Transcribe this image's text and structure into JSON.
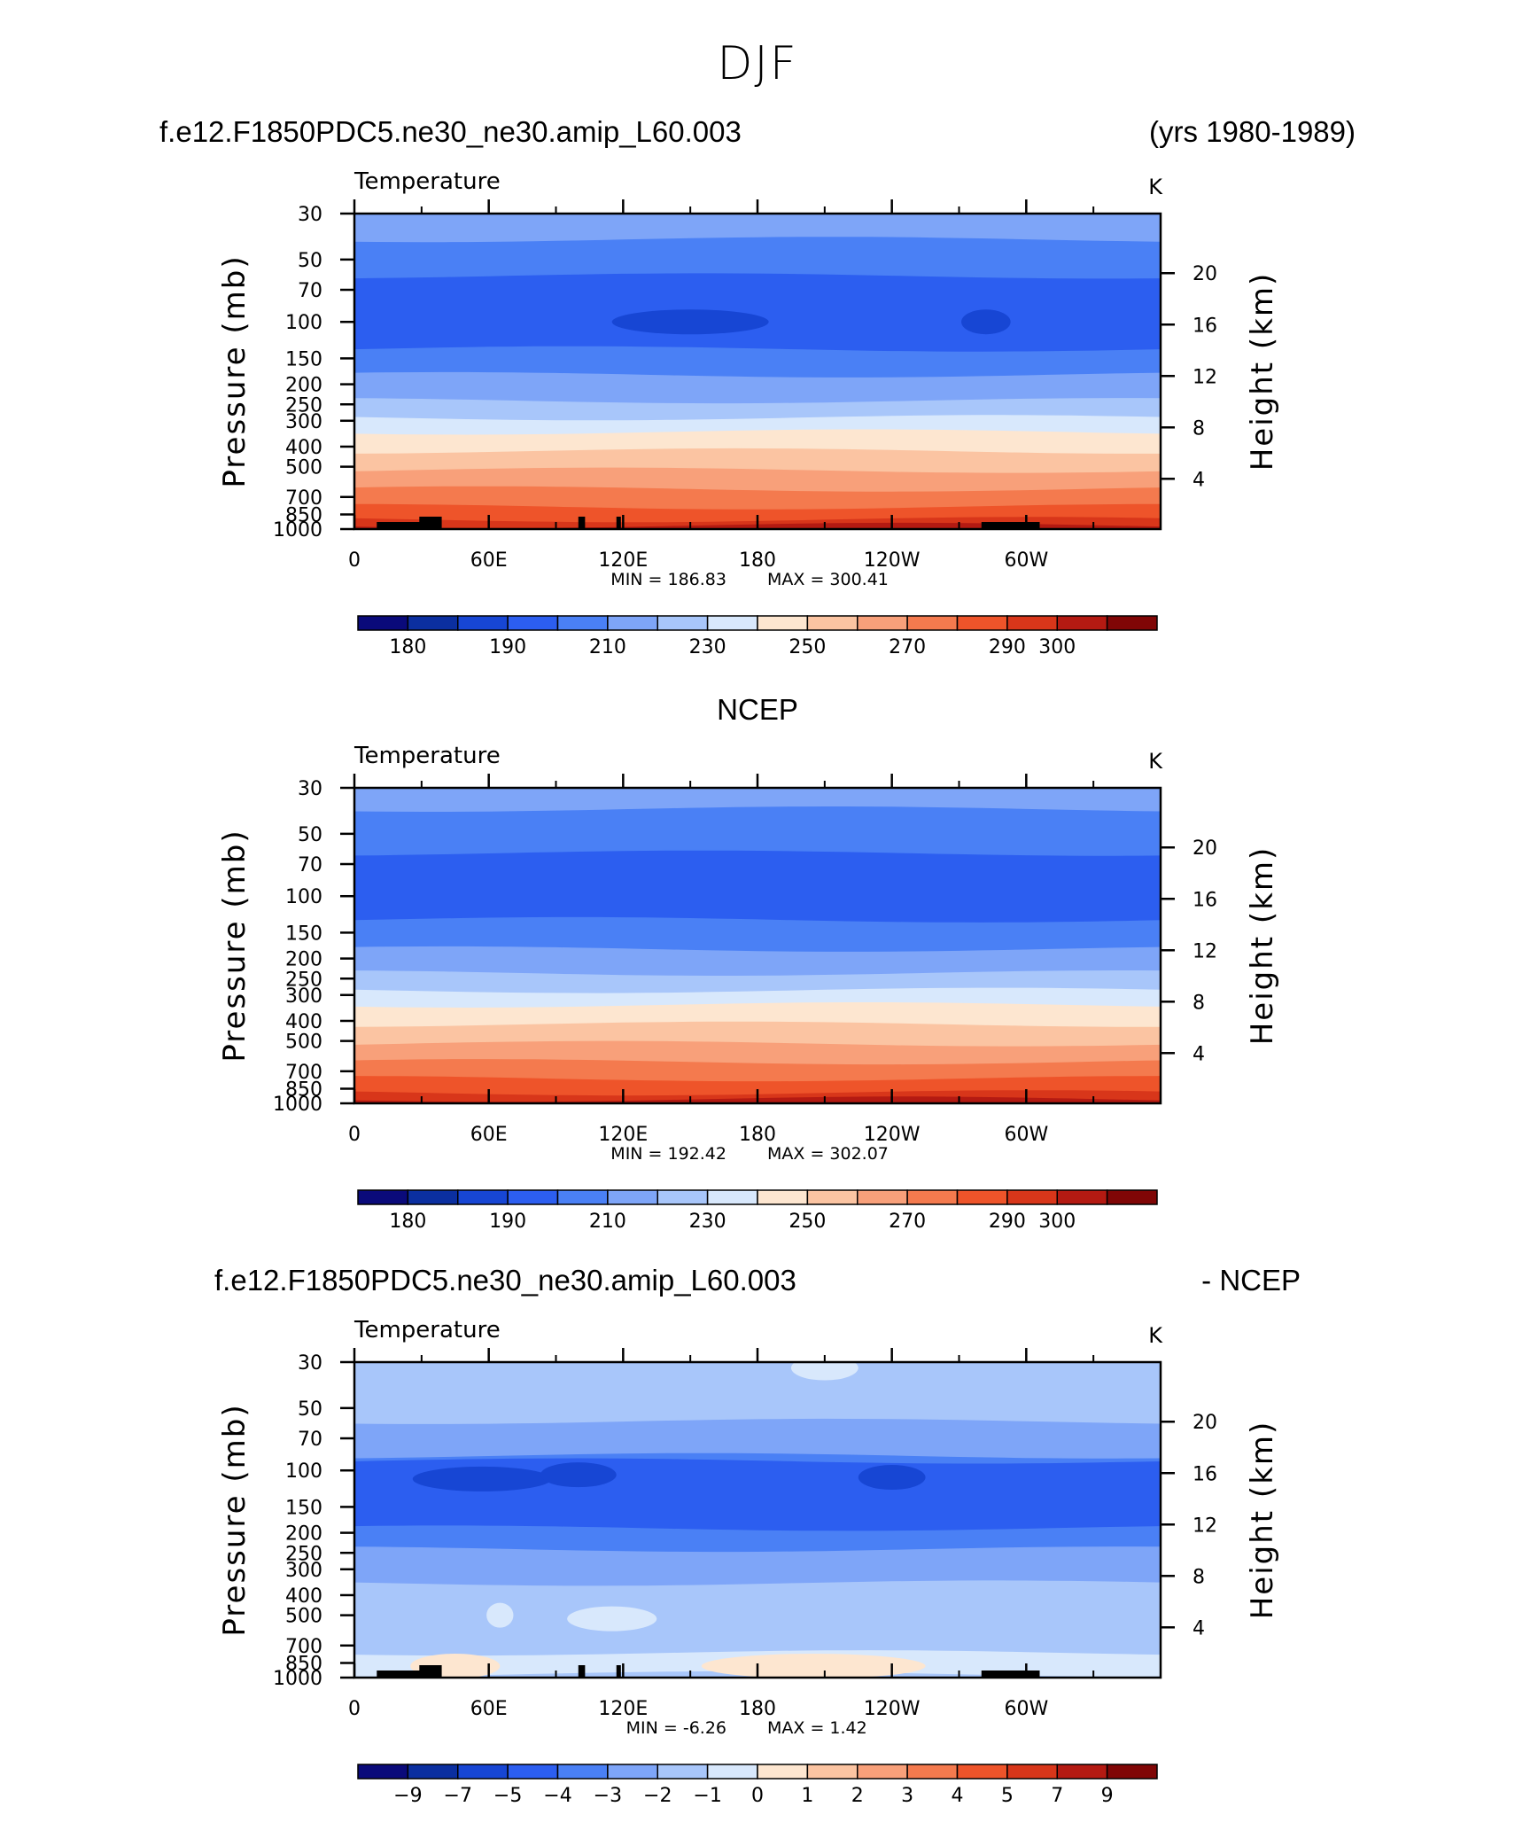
{
  "figure": {
    "title": "DJF",
    "panel1": {
      "left_title": "f.e12.F1850PDC5.ne30_ne30.amip_L60.003",
      "right_title": "(yrs 1980-1989)"
    },
    "panel2": {
      "center_title": "NCEP"
    },
    "panel3": {
      "left_title": "f.e12.F1850PDC5.ne30_ne30.amip_L60.003",
      "right_title": "- NCEP"
    }
  },
  "chart_data": [
    {
      "type": "heatmap",
      "title": "Temperature",
      "units": "K",
      "ylabel": "Pressure (mb)",
      "ylabel_right": "Height (km)",
      "x_ticks": [
        "0",
        "60E",
        "120E",
        "180",
        "120W",
        "60W"
      ],
      "y_ticks": [
        "30",
        "50",
        "70",
        "100",
        "150",
        "200",
        "250",
        "300",
        "400",
        "500",
        "700",
        "850",
        "1000"
      ],
      "y2_ticks": [
        "20",
        "16",
        "12",
        "8",
        "4"
      ],
      "min_label": "MIN =  186.83",
      "max_label": "MAX =  300.41",
      "min": 186.83,
      "max": 300.41,
      "colorbar_labels": [
        "180",
        "190",
        "210",
        "230",
        "250",
        "270",
        "290",
        "300"
      ],
      "colorbar_colors": [
        "#0a0a7a",
        "#0b2fa0",
        "#1746d4",
        "#2c5ef0",
        "#4a80f5",
        "#7ea5f8",
        "#a8c6fa",
        "#d8e8fc",
        "#fde6d0",
        "#fbc4a2",
        "#f8a07a",
        "#f47a4e",
        "#ee542a",
        "#d8361a",
        "#b41a12",
        "#800606"
      ],
      "profile": [
        {
          "p": 30,
          "class": 5
        },
        {
          "p": 40,
          "class": 4
        },
        {
          "p": 60,
          "class": 3
        },
        {
          "p": 135,
          "class": 4
        },
        {
          "p": 180,
          "class": 5
        },
        {
          "p": 240,
          "class": 6
        },
        {
          "p": 290,
          "class": 7
        },
        {
          "p": 340,
          "class": 8
        },
        {
          "p": 420,
          "class": 9
        },
        {
          "p": 520,
          "class": 10
        },
        {
          "p": 640,
          "class": 11
        },
        {
          "p": 780,
          "class": 12
        },
        {
          "p": 900,
          "class": 13
        },
        {
          "p": 960,
          "class": 14
        }
      ],
      "features": [
        {
          "lon": 150,
          "p": 100,
          "class": 2,
          "width_lon": 70
        },
        {
          "lon": 282,
          "p": 100,
          "class": 2,
          "width_lon": 22
        }
      ],
      "topography": [
        [
          10,
          30
        ],
        [
          29,
          39
        ],
        [
          100,
          103
        ],
        [
          117,
          119
        ],
        [
          280,
          306
        ]
      ]
    },
    {
      "type": "heatmap",
      "title": "Temperature",
      "units": "K",
      "ylabel": "Pressure (mb)",
      "ylabel_right": "Height (km)",
      "x_ticks": [
        "0",
        "60E",
        "120E",
        "180",
        "120W",
        "60W"
      ],
      "y_ticks": [
        "30",
        "50",
        "70",
        "100",
        "150",
        "200",
        "250",
        "300",
        "400",
        "500",
        "700",
        "850",
        "1000"
      ],
      "y2_ticks": [
        "20",
        "16",
        "12",
        "8",
        "4"
      ],
      "min_label": "MIN =  192.42",
      "max_label": "MAX =  302.07",
      "min": 192.42,
      "max": 302.07,
      "colorbar_labels": [
        "180",
        "190",
        "210",
        "230",
        "250",
        "270",
        "290",
        "300"
      ],
      "colorbar_colors": [
        "#0a0a7a",
        "#0b2fa0",
        "#1746d4",
        "#2c5ef0",
        "#4a80f5",
        "#7ea5f8",
        "#a8c6fa",
        "#d8e8fc",
        "#fde6d0",
        "#fbc4a2",
        "#f8a07a",
        "#f47a4e",
        "#ee542a",
        "#d8361a",
        "#b41a12",
        "#800606"
      ],
      "profile": [
        {
          "p": 30,
          "class": 5
        },
        {
          "p": 38,
          "class": 4
        },
        {
          "p": 62,
          "class": 3
        },
        {
          "p": 130,
          "class": 4
        },
        {
          "p": 180,
          "class": 5
        },
        {
          "p": 235,
          "class": 6
        },
        {
          "p": 285,
          "class": 7
        },
        {
          "p": 335,
          "class": 8
        },
        {
          "p": 415,
          "class": 9
        },
        {
          "p": 515,
          "class": 10
        },
        {
          "p": 630,
          "class": 11
        },
        {
          "p": 760,
          "class": 12
        },
        {
          "p": 890,
          "class": 13
        },
        {
          "p": 955,
          "class": 14
        }
      ],
      "features": [],
      "topography": []
    },
    {
      "type": "heatmap",
      "title": "Temperature",
      "units": "K",
      "ylabel": "Pressure (mb)",
      "ylabel_right": "Height (km)",
      "x_ticks": [
        "0",
        "60E",
        "120E",
        "180",
        "120W",
        "60W"
      ],
      "y_ticks": [
        "30",
        "50",
        "70",
        "100",
        "150",
        "200",
        "250",
        "300",
        "400",
        "500",
        "700",
        "850",
        "1000"
      ],
      "y2_ticks": [
        "20",
        "16",
        "12",
        "8",
        "4"
      ],
      "min_label": "MIN =   -6.26",
      "max_label": "MAX =    1.42",
      "min": -6.26,
      "max": 1.42,
      "colorbar_labels": [
        "-9",
        "-7",
        "-5",
        "-4",
        "-3",
        "-2",
        "-1",
        "0",
        "1",
        "2",
        "3",
        "4",
        "5",
        "7",
        "9"
      ],
      "colorbar_colors": [
        "#0a0a7a",
        "#0b2fa0",
        "#1746d4",
        "#2c5ef0",
        "#4a80f5",
        "#7ea5f8",
        "#a8c6fa",
        "#d8e8fc",
        "#fde6d0",
        "#fbc4a2",
        "#f8a07a",
        "#f47a4e",
        "#ee542a",
        "#d8361a",
        "#b41a12",
        "#800606"
      ],
      "profile": [
        {
          "p": 30,
          "class": 6
        },
        {
          "p": 58,
          "class": 5
        },
        {
          "p": 85,
          "class": 4
        },
        {
          "p": 90,
          "class": 3
        },
        {
          "p": 190,
          "class": 4
        },
        {
          "p": 240,
          "class": 5
        },
        {
          "p": 350,
          "class": 6
        },
        {
          "p": 760,
          "class": 7
        },
        {
          "p": 960,
          "class": 6
        }
      ],
      "features": [
        {
          "lon": 57,
          "p": 110,
          "class": 2,
          "width_lon": 62
        },
        {
          "lon": 100,
          "p": 105,
          "class": 2,
          "width_lon": 34
        },
        {
          "lon": 240,
          "p": 108,
          "class": 2,
          "width_lon": 30
        },
        {
          "lon": 65,
          "p": 500,
          "class": 7,
          "width_lon": 12
        },
        {
          "lon": 115,
          "p": 520,
          "class": 7,
          "width_lon": 40
        },
        {
          "lon": 205,
          "p": 880,
          "class": 8,
          "width_lon": 100
        },
        {
          "lon": 45,
          "p": 880,
          "class": 8,
          "width_lon": 40
        },
        {
          "lon": 210,
          "p": 32,
          "class": 7,
          "width_lon": 30
        }
      ],
      "topography": [
        [
          10,
          30
        ],
        [
          29,
          39
        ],
        [
          100,
          103
        ],
        [
          117,
          119
        ],
        [
          280,
          306
        ]
      ]
    }
  ]
}
